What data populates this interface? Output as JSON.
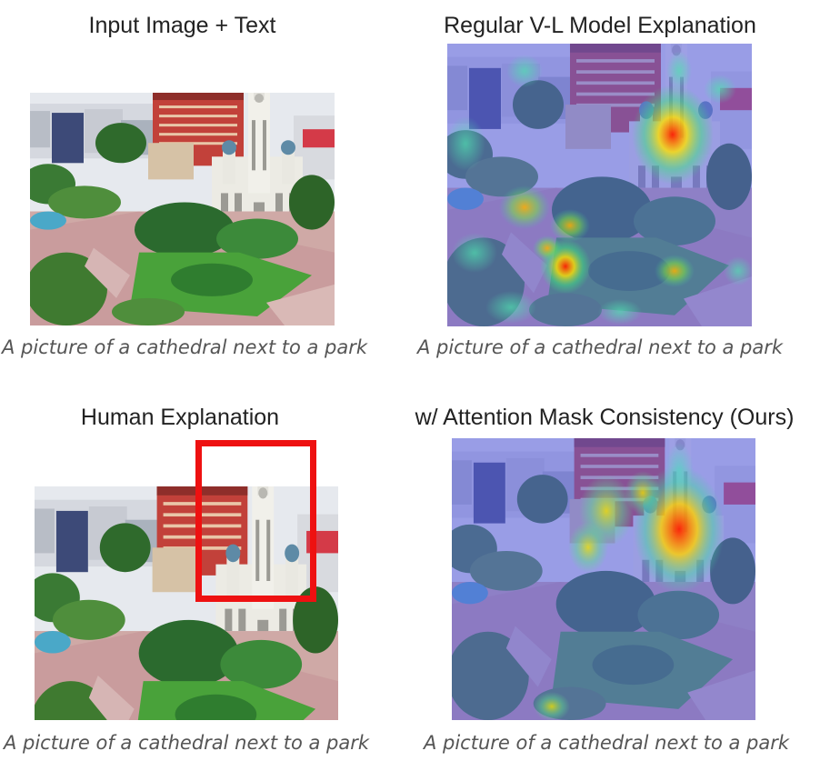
{
  "panels": [
    {
      "title": "Input Image + Text",
      "caption": "A picture of a cathedral next to a park"
    },
    {
      "title": "Regular V-L Model Explanation",
      "caption": "A picture of a cathedral next to a park"
    },
    {
      "title": "Human Explanation",
      "caption": "A picture of a cathedral next to a park"
    },
    {
      "title": "w/ Attention Mask Consistency (Ours)",
      "caption": "A picture of a cathedral next to a park"
    }
  ],
  "colors": {
    "human_box": "#ee1111",
    "heatmap_base": "#5a5fe0"
  }
}
